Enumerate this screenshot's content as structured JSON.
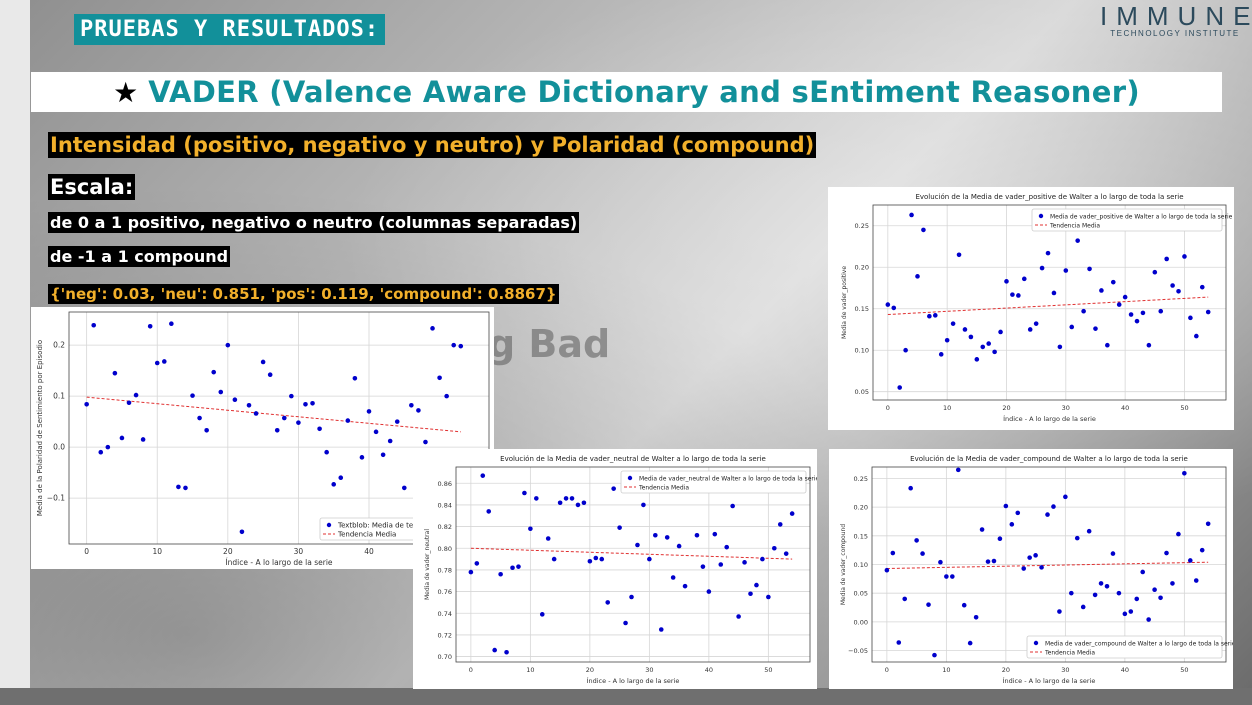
{
  "header": {
    "tag": "PRUEBAS Y RESULTADOS:"
  },
  "logo": {
    "main": "IMMUNE",
    "sub": "TECHNOLOGY INSTITUTE"
  },
  "title": {
    "icon": "star-icon",
    "star": "★",
    "text": "VADER (Valence Aware Dictionary and sEntiment Reasoner)"
  },
  "lines": {
    "l1": "Intensidad (positivo, negativo y neutro) y Polaridad (compound)",
    "l2": "Escala:",
    "l3": "de 0 a 1 positivo, negativo o neutro (columnas separadas)",
    "l4": "de -1 a 1 compound",
    "l5": "{'neg': 0.03, 'neu': 0.851, 'pos': 0.119, 'compound': 0.8867}"
  },
  "watermark": "g Bad",
  "colors": {
    "teal": "#12909a",
    "orange": "#f2b02b",
    "point": "#0000cc",
    "trend": "#e03030"
  },
  "chart_data": [
    {
      "type": "scatter",
      "title": "",
      "xlabel": "Índice - A lo largo de la serie",
      "ylabel": "Media de la Polaridad de Sentimiento por Episodio",
      "xlim": [
        -2.5,
        57
      ],
      "ylim": [
        -0.19,
        0.265
      ],
      "xticks": [
        0,
        10,
        20,
        30,
        40
      ],
      "yticks": [
        -0.1,
        0.0,
        0.1,
        0.2
      ],
      "ytick_labels": [
        "−0.1",
        "0.0",
        "0.1",
        "0.2"
      ],
      "grid": true,
      "legend_position": "lower-right",
      "legend": [
        "Textblob: Media de textblob_se",
        "Tendencia Media"
      ],
      "trend": [
        [
          0,
          0.098
        ],
        [
          53,
          0.03
        ]
      ],
      "x": [
        0,
        1,
        2,
        3,
        4,
        5,
        6,
        7,
        8,
        9,
        10,
        11,
        12,
        13,
        14,
        15,
        16,
        17,
        18,
        19,
        20,
        21,
        22,
        23,
        24,
        25,
        26,
        27,
        28,
        29,
        30,
        31,
        32,
        33,
        34,
        35,
        36,
        37,
        38,
        39,
        40,
        41,
        42,
        43,
        44,
        45,
        46,
        47,
        48,
        49,
        50,
        51,
        52,
        53
      ],
      "y": [
        0.084,
        0.239,
        -0.01,
        0.0,
        0.145,
        0.018,
        0.087,
        0.102,
        0.015,
        0.237,
        0.165,
        0.168,
        0.242,
        -0.078,
        -0.08,
        0.101,
        0.057,
        0.033,
        0.147,
        0.108,
        0.2,
        0.093,
        -0.166,
        0.082,
        0.066,
        0.167,
        0.142,
        0.033,
        0.057,
        0.1,
        0.048,
        0.084,
        0.086,
        0.036,
        -0.01,
        -0.073,
        -0.06,
        0.052,
        0.135,
        -0.02,
        0.07,
        0.03,
        -0.015,
        0.012,
        0.05,
        -0.08,
        0.082,
        0.072,
        0.01,
        0.233,
        0.136,
        0.1,
        0.2,
        0.198
      ]
    },
    {
      "type": "scatter",
      "title": "Evolución de la Media de vader_positive de Walter a lo largo de toda la serie",
      "xlabel": "Índice - A lo largo de la serie",
      "ylabel": "Media de vader_positive",
      "xlim": [
        -2.5,
        57
      ],
      "ylim": [
        0.04,
        0.275
      ],
      "xticks": [
        0,
        10,
        20,
        30,
        40,
        50
      ],
      "yticks": [
        0.05,
        0.1,
        0.15,
        0.2,
        0.25
      ],
      "ytick_labels": [
        "0.05",
        "0.10",
        "0.15",
        "0.20",
        "0.25"
      ],
      "grid": true,
      "legend_position": "top-right",
      "legend": [
        "Media de vader_positive de Walter a lo largo de toda la serie",
        "Tendencia Media"
      ],
      "trend": [
        [
          0,
          0.143
        ],
        [
          54,
          0.164
        ]
      ],
      "x": [
        0,
        1,
        2,
        3,
        4,
        5,
        6,
        7,
        8,
        9,
        10,
        11,
        12,
        13,
        14,
        15,
        16,
        17,
        18,
        19,
        20,
        21,
        22,
        23,
        24,
        25,
        26,
        27,
        28,
        29,
        30,
        31,
        32,
        33,
        34,
        35,
        36,
        37,
        38,
        39,
        40,
        41,
        42,
        43,
        44,
        45,
        46,
        47,
        48,
        49,
        50,
        51,
        52,
        53,
        54
      ],
      "y": [
        0.155,
        0.151,
        0.055,
        0.1,
        0.263,
        0.189,
        0.245,
        0.141,
        0.142,
        0.095,
        0.112,
        0.132,
        0.215,
        0.125,
        0.116,
        0.089,
        0.104,
        0.108,
        0.098,
        0.122,
        0.183,
        0.167,
        0.166,
        0.186,
        0.125,
        0.132,
        0.199,
        0.217,
        0.169,
        0.104,
        0.196,
        0.128,
        0.232,
        0.147,
        0.198,
        0.126,
        0.172,
        0.106,
        0.182,
        0.155,
        0.164,
        0.143,
        0.135,
        0.145,
        0.106,
        0.194,
        0.147,
        0.21,
        0.178,
        0.171,
        0.213,
        0.139,
        0.117,
        0.176,
        0.146
      ]
    },
    {
      "type": "scatter",
      "title": "Evolución de la Media de vader_neutral de Walter a lo largo de toda la serie",
      "xlabel": "Índice - A lo largo de la serie",
      "ylabel": "Media de vader_neutral",
      "xlim": [
        -2.5,
        57
      ],
      "ylim": [
        0.695,
        0.875
      ],
      "xticks": [
        0,
        10,
        20,
        30,
        40,
        50
      ],
      "yticks": [
        0.7,
        0.72,
        0.74,
        0.76,
        0.78,
        0.8,
        0.82,
        0.84,
        0.86
      ],
      "ytick_labels": [
        "0.70",
        "0.72",
        "0.74",
        "0.76",
        "0.78",
        "0.80",
        "0.82",
        "0.84",
        "0.86"
      ],
      "grid": true,
      "legend_position": "top-right",
      "legend": [
        "Media de vader_neutral de Walter a lo largo de toda la serie",
        "Tendencia Media"
      ],
      "trend": [
        [
          0,
          0.8
        ],
        [
          54,
          0.79
        ]
      ],
      "x": [
        0,
        1,
        2,
        3,
        4,
        5,
        6,
        7,
        8,
        9,
        10,
        11,
        12,
        13,
        14,
        15,
        16,
        17,
        18,
        19,
        20,
        21,
        22,
        23,
        24,
        25,
        26,
        27,
        28,
        29,
        30,
        31,
        32,
        33,
        34,
        35,
        36,
        37,
        38,
        39,
        40,
        41,
        42,
        43,
        44,
        45,
        46,
        47,
        48,
        49,
        50,
        51,
        52,
        53,
        54
      ],
      "y": [
        0.778,
        0.786,
        0.867,
        0.834,
        0.706,
        0.776,
        0.704,
        0.782,
        0.783,
        0.851,
        0.818,
        0.846,
        0.739,
        0.809,
        0.79,
        0.842,
        0.846,
        0.846,
        0.84,
        0.842,
        0.788,
        0.791,
        0.79,
        0.75,
        0.855,
        0.819,
        0.731,
        0.755,
        0.803,
        0.84,
        0.79,
        0.812,
        0.725,
        0.81,
        0.773,
        0.802,
        0.765,
        0.855,
        0.812,
        0.783,
        0.76,
        0.813,
        0.785,
        0.801,
        0.839,
        0.737,
        0.787,
        0.758,
        0.766,
        0.79,
        0.755,
        0.8,
        0.822,
        0.795,
        0.832
      ]
    },
    {
      "type": "scatter",
      "title": "Evolución de la Media de vader_compound de Walter a lo largo de toda la serie",
      "xlabel": "Índice - A lo largo de la serie",
      "ylabel": "Media de vader_compound",
      "xlim": [
        -2.5,
        57
      ],
      "ylim": [
        -0.07,
        0.27
      ],
      "xticks": [
        0,
        10,
        20,
        30,
        40,
        50
      ],
      "yticks": [
        -0.05,
        0.0,
        0.05,
        0.1,
        0.15,
        0.2,
        0.25
      ],
      "ytick_labels": [
        "−0.05",
        "0.00",
        "0.05",
        "0.10",
        "0.15",
        "0.20",
        "0.25"
      ],
      "grid": true,
      "legend_position": "lower-right",
      "legend": [
        "Media de vader_compound de Walter a lo largo de toda la serie",
        "Tendencia Media"
      ],
      "trend": [
        [
          0,
          0.093
        ],
        [
          54,
          0.104
        ]
      ],
      "x": [
        0,
        1,
        2,
        3,
        4,
        5,
        6,
        7,
        8,
        9,
        10,
        11,
        12,
        13,
        14,
        15,
        16,
        17,
        18,
        19,
        20,
        21,
        22,
        23,
        24,
        25,
        26,
        27,
        28,
        29,
        30,
        31,
        32,
        33,
        34,
        35,
        36,
        37,
        38,
        39,
        40,
        41,
        42,
        43,
        44,
        45,
        46,
        47,
        48,
        49,
        50,
        51,
        52,
        53,
        54
      ],
      "y": [
        0.09,
        0.12,
        -0.036,
        0.04,
        0.233,
        0.142,
        0.119,
        0.03,
        -0.058,
        0.104,
        0.079,
        0.079,
        0.265,
        0.029,
        -0.037,
        0.008,
        0.161,
        0.105,
        0.106,
        0.145,
        0.202,
        0.17,
        0.19,
        0.093,
        0.112,
        0.116,
        0.095,
        0.187,
        0.201,
        0.018,
        0.218,
        0.05,
        0.146,
        0.026,
        0.158,
        0.047,
        0.067,
        0.062,
        0.119,
        0.05,
        0.014,
        0.018,
        0.04,
        0.087,
        0.004,
        0.056,
        0.042,
        0.12,
        0.067,
        0.153,
        0.259,
        0.107,
        0.072,
        0.125,
        0.171
      ]
    }
  ]
}
